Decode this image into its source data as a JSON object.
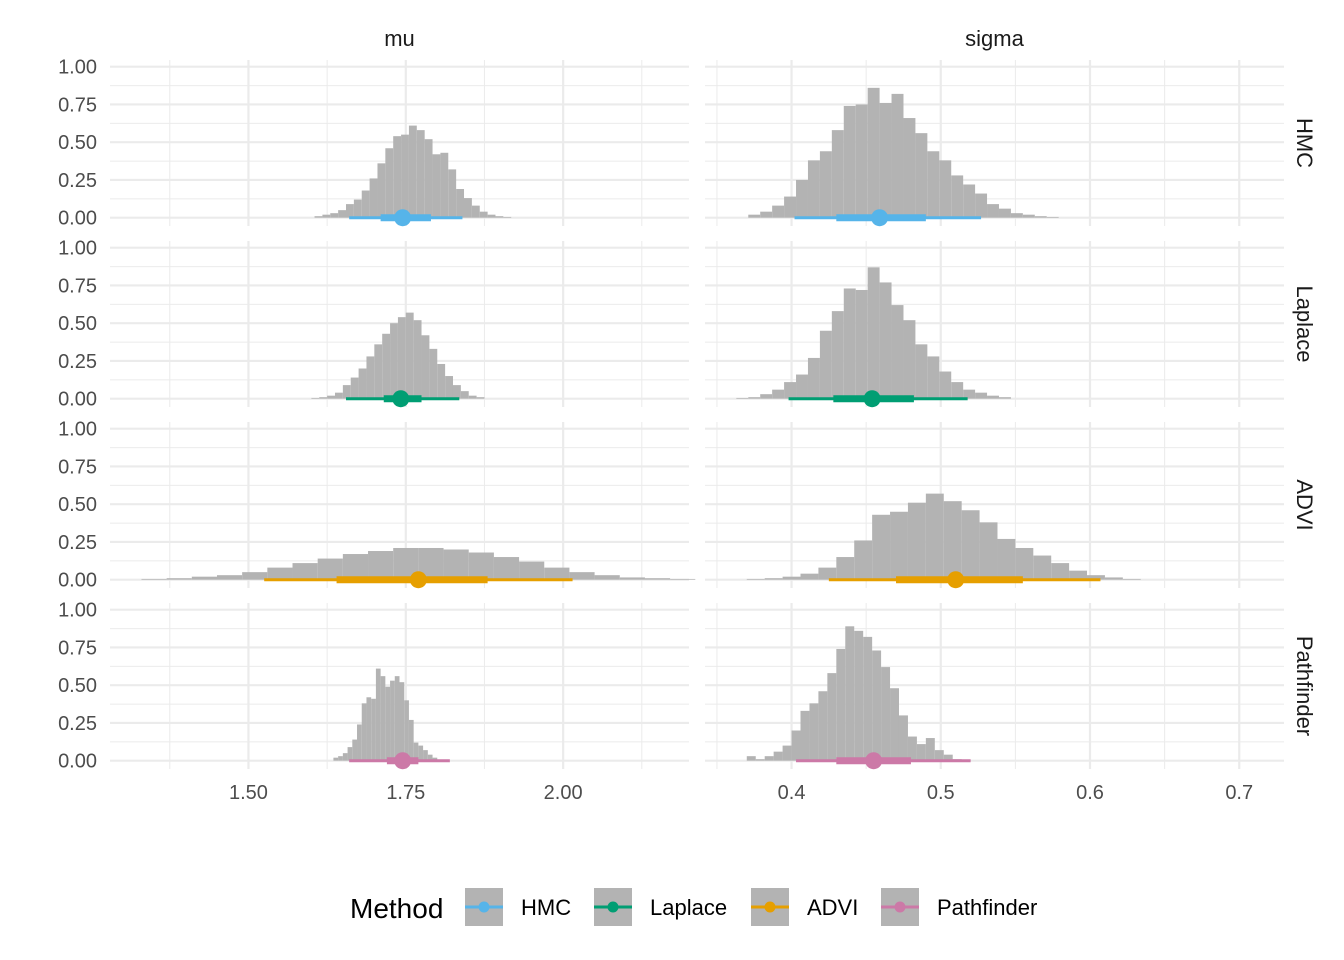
{
  "chart_data": {
    "type": "histogram-interval-facets",
    "facet_columns": [
      "mu",
      "sigma"
    ],
    "facet_rows": [
      "HMC",
      "Laplace",
      "ADVI",
      "Pathfinder"
    ],
    "y_ticks": [
      "0.00",
      "0.25",
      "0.50",
      "0.75",
      "1.00"
    ],
    "ylim": [
      0,
      1
    ],
    "x_axes": {
      "mu": {
        "xlim": [
          1.28,
          2.2
        ],
        "ticks": [
          "1.50",
          "1.75",
          "2.00"
        ],
        "tick_values": [
          1.5,
          1.75,
          2.0
        ]
      },
      "sigma": {
        "xlim": [
          0.342,
          0.73
        ],
        "ticks": [
          "0.4",
          "0.5",
          "0.6",
          "0.7"
        ],
        "tick_values": [
          0.4,
          0.5,
          0.6,
          0.7
        ]
      }
    },
    "histogram_fill": "#b3b3b3",
    "legend": {
      "title": "Method",
      "entries": [
        {
          "label": "HMC",
          "color": "#56B4E9"
        },
        {
          "label": "Laplace",
          "color": "#009E73"
        },
        {
          "label": "ADVI",
          "color": "#E69F00"
        },
        {
          "label": "Pathfinder",
          "color": "#CC79A7"
        }
      ]
    },
    "panels": {
      "HMC": {
        "mu": {
          "bin_start": 1.605,
          "bin_width": 0.0125,
          "heights": [
            0.01,
            0.02,
            0.03,
            0.05,
            0.09,
            0.12,
            0.18,
            0.26,
            0.36,
            0.46,
            0.54,
            0.55,
            0.61,
            0.58,
            0.52,
            0.42,
            0.43,
            0.32,
            0.19,
            0.13,
            0.08,
            0.04,
            0.02,
            0.01,
            0.005
          ],
          "point": 1.745,
          "inner": [
            1.71,
            1.79
          ],
          "outer": [
            1.66,
            1.84
          ]
        },
        "sigma": {
          "bin_start": 0.371,
          "bin_width": 0.008,
          "heights": [
            0.02,
            0.04,
            0.08,
            0.14,
            0.25,
            0.38,
            0.44,
            0.58,
            0.74,
            0.75,
            0.86,
            0.76,
            0.82,
            0.66,
            0.56,
            0.44,
            0.38,
            0.28,
            0.22,
            0.16,
            0.09,
            0.06,
            0.03,
            0.02,
            0.01,
            0.005
          ],
          "point": 0.459,
          "inner": [
            0.43,
            0.49
          ],
          "outer": [
            0.402,
            0.527
          ]
        }
      },
      "Laplace": {
        "mu": {
          "bin_start": 1.6,
          "bin_width": 0.0125,
          "heights": [
            0.005,
            0.01,
            0.02,
            0.04,
            0.09,
            0.14,
            0.2,
            0.28,
            0.36,
            0.43,
            0.5,
            0.54,
            0.57,
            0.52,
            0.42,
            0.33,
            0.23,
            0.15,
            0.09,
            0.05,
            0.02,
            0.01
          ],
          "point": 1.742,
          "inner": [
            1.715,
            1.775
          ],
          "outer": [
            1.655,
            1.835
          ]
        },
        "sigma": {
          "bin_start": 0.363,
          "bin_width": 0.008,
          "heights": [
            0.005,
            0.01,
            0.03,
            0.06,
            0.11,
            0.16,
            0.27,
            0.45,
            0.58,
            0.73,
            0.72,
            0.87,
            0.77,
            0.62,
            0.52,
            0.36,
            0.28,
            0.18,
            0.11,
            0.06,
            0.04,
            0.02,
            0.01
          ],
          "point": 0.454,
          "inner": [
            0.428,
            0.482
          ],
          "outer": [
            0.398,
            0.518
          ]
        }
      },
      "ADVI": {
        "mu": {
          "bin_start": 1.33,
          "bin_width": 0.04,
          "heights": [
            0.005,
            0.01,
            0.02,
            0.03,
            0.05,
            0.08,
            0.11,
            0.14,
            0.17,
            0.19,
            0.21,
            0.21,
            0.2,
            0.18,
            0.15,
            0.12,
            0.08,
            0.05,
            0.03,
            0.015,
            0.01,
            0.005
          ],
          "point": 1.77,
          "inner": [
            1.64,
            1.88
          ],
          "outer": [
            1.525,
            2.015
          ]
        },
        "sigma": {
          "bin_start": 0.37,
          "bin_width": 0.012,
          "heights": [
            0.005,
            0.01,
            0.02,
            0.04,
            0.08,
            0.15,
            0.26,
            0.43,
            0.45,
            0.51,
            0.57,
            0.52,
            0.46,
            0.38,
            0.27,
            0.21,
            0.16,
            0.11,
            0.06,
            0.03,
            0.015,
            0.005
          ],
          "point": 0.51,
          "inner": [
            0.47,
            0.555
          ],
          "outer": [
            0.425,
            0.607
          ]
        }
      },
      "Pathfinder": {
        "mu": {
          "bin_start": 1.635,
          "bin_width": 0.0075,
          "heights": [
            0.02,
            0.03,
            0.05,
            0.09,
            0.14,
            0.24,
            0.38,
            0.42,
            0.41,
            0.61,
            0.56,
            0.49,
            0.53,
            0.56,
            0.52,
            0.4,
            0.27,
            0.12,
            0.1,
            0.07,
            0.04,
            0.02
          ],
          "point": 1.745,
          "inner": [
            1.72,
            1.77
          ],
          "outer": [
            1.66,
            1.82
          ]
        },
        "sigma": {
          "bin_start": 0.37,
          "bin_width": 0.006,
          "heights": [
            0.03,
            0.01,
            0.03,
            0.06,
            0.1,
            0.2,
            0.33,
            0.38,
            0.46,
            0.58,
            0.74,
            0.89,
            0.86,
            0.82,
            0.73,
            0.62,
            0.48,
            0.3,
            0.16,
            0.11,
            0.15,
            0.07,
            0.04,
            0.01,
            0.005
          ],
          "point": 0.455,
          "inner": [
            0.43,
            0.48
          ],
          "outer": [
            0.403,
            0.52
          ]
        }
      }
    }
  }
}
